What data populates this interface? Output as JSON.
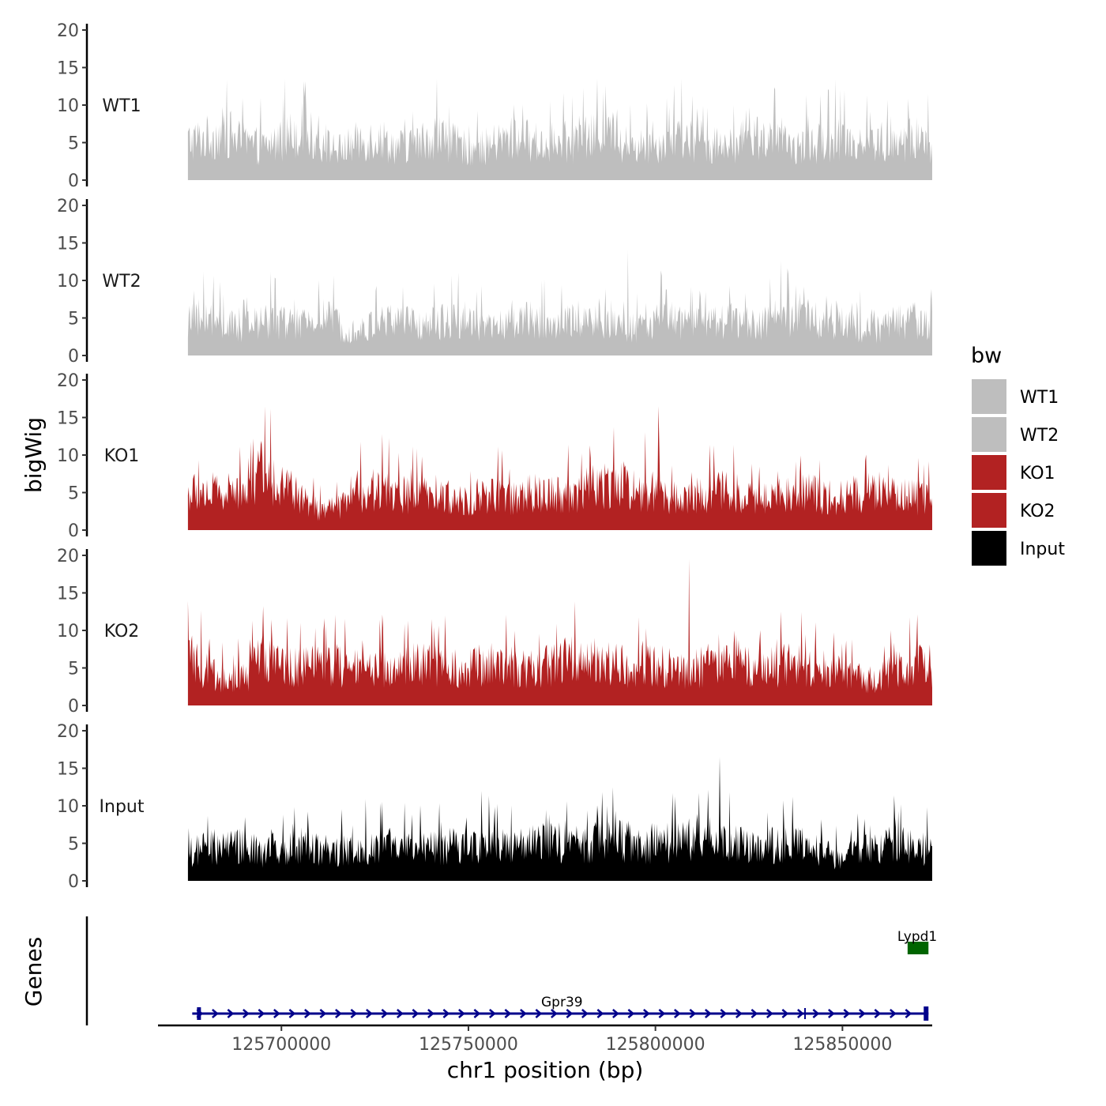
{
  "chart_data": {
    "type": "area",
    "title": "",
    "ylabel": "bigWig",
    "xlabel": "chr1 position (bp)",
    "xlim": [
      125667000,
      125874000
    ],
    "ylim": [
      0,
      20
    ],
    "ytick_labels": [
      "0",
      "5",
      "10",
      "15",
      "20"
    ],
    "xtick_labels": [
      "125700000",
      "125750000",
      "125800000",
      "125850000"
    ],
    "xtick_values": [
      125700000,
      125750000,
      125800000,
      125850000
    ],
    "legend": {
      "title": "bw",
      "placement": "right",
      "entries": [
        {
          "label": "WT1",
          "color": "#BEBEBE"
        },
        {
          "label": "WT2",
          "color": "#BEBEBE"
        },
        {
          "label": "KO1",
          "color": "#B22222"
        },
        {
          "label": "KO2",
          "color": "#B22222"
        },
        {
          "label": "Input",
          "color": "#000000"
        }
      ]
    },
    "series": [
      {
        "name": "WT1",
        "color": "#BEBEBE",
        "x_start": 125675000,
        "x_end": 125874000,
        "profile": [
          6.5,
          7,
          8,
          6,
          5.5,
          7,
          8.5,
          6,
          5,
          6.5,
          7,
          5.5,
          6,
          7.5,
          6,
          5,
          6,
          7,
          6.5,
          5.5,
          6,
          7,
          8,
          6,
          5.5,
          6.5,
          7,
          6,
          5,
          6.5,
          7.5,
          6,
          5.5,
          6,
          7,
          6.5,
          6,
          5.5,
          7,
          6
        ],
        "peak_max": 13.5
      },
      {
        "name": "WT2",
        "color": "#BEBEBE",
        "x_start": 125675000,
        "x_end": 125874000,
        "profile": [
          5.5,
          6,
          5,
          4.5,
          6,
          5.5,
          5,
          6.5,
          5,
          4,
          5.5,
          6,
          5,
          5.5,
          6,
          5,
          4.5,
          5.5,
          6,
          5,
          5.5,
          6.5,
          5,
          4.5,
          5,
          6,
          5.5,
          5,
          6,
          5.5,
          5,
          6.5,
          7,
          6,
          5.5,
          5,
          4.5,
          5.5,
          6,
          5
        ],
        "peak_max": 14
      },
      {
        "name": "KO1",
        "color": "#B22222",
        "x_start": 125675000,
        "x_end": 125874000,
        "profile": [
          6,
          6.5,
          6,
          7.5,
          9,
          8,
          5,
          3,
          4,
          6,
          7,
          6,
          5.5,
          6,
          5,
          5.5,
          6,
          5.5,
          6,
          6.5,
          6,
          7,
          8,
          7.5,
          6.5,
          6,
          5.5,
          6,
          6.5,
          6,
          5.5,
          6,
          6.5,
          6,
          5.5,
          6,
          6.5,
          6,
          5.5,
          5
        ],
        "peak_max": 16.5
      },
      {
        "name": "KO2",
        "color": "#B22222",
        "x_start": 125675000,
        "x_end": 125874000,
        "profile": [
          8,
          6,
          4,
          5,
          8,
          7,
          6.5,
          7,
          6.5,
          6,
          6.5,
          6,
          7,
          6.5,
          6,
          6.5,
          7,
          6.5,
          6,
          7,
          7.5,
          8,
          7,
          6.5,
          7,
          6.5,
          6,
          6.5,
          7,
          6.5,
          6,
          6.5,
          7,
          6.5,
          6,
          5,
          4,
          6,
          7,
          6.5
        ],
        "peak_max": 19.5
      },
      {
        "name": "Input",
        "color": "#000000",
        "x_start": 125675000,
        "x_end": 125874000,
        "profile": [
          4.5,
          5.5,
          6,
          5.5,
          5,
          5.5,
          6,
          5.5,
          5,
          5.5,
          6,
          5.5,
          5,
          5.5,
          6,
          6.5,
          6,
          5.5,
          6,
          6.5,
          6,
          6.5,
          7,
          6.5,
          6,
          6.5,
          7,
          6.5,
          6,
          6,
          5.5,
          6,
          6.5,
          5,
          4,
          5,
          5.5,
          6,
          5.5,
          5
        ],
        "peak_max": 16.5
      }
    ],
    "panels": [
      {
        "label": "WT1"
      },
      {
        "label": "WT2"
      },
      {
        "label": "KO1"
      },
      {
        "label": "KO2"
      },
      {
        "label": "Input"
      }
    ],
    "genes_track": {
      "ylabel": "Genes",
      "genes": [
        {
          "name": "Gpr39",
          "start": 125677000,
          "end": 125873000,
          "strand": "+",
          "color": "#00008B",
          "row": 1
        },
        {
          "name": "Lypd1",
          "start": 125867000,
          "end": 125873000,
          "strand": "-",
          "color": "#006400",
          "row": 2
        }
      ]
    }
  }
}
